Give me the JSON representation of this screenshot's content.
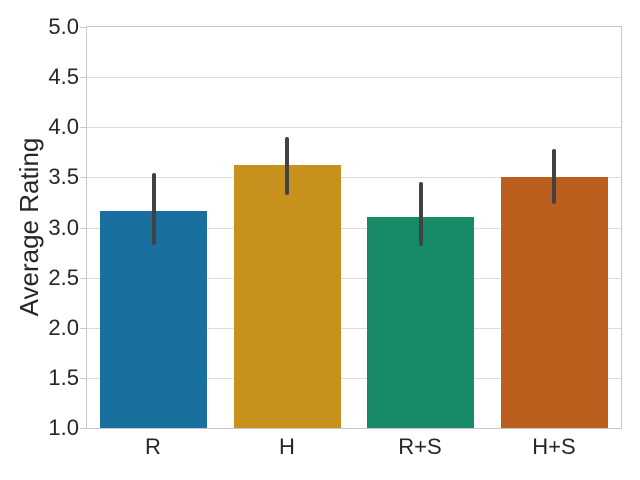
{
  "window": {
    "background": "#ffffff"
  },
  "chart_data": {
    "type": "bar",
    "title": "",
    "xlabel": "",
    "ylabel": "Average Rating",
    "categories": [
      "R",
      "H",
      "R+S",
      "H+S"
    ],
    "values": [
      3.16,
      3.62,
      3.1,
      3.5
    ],
    "errors_low": [
      2.82,
      3.32,
      2.81,
      3.23
    ],
    "errors_high": [
      3.54,
      3.9,
      3.45,
      3.78
    ],
    "ylim": [
      1.0,
      5.0
    ],
    "ytick_labels": [
      "1.0",
      "1.5",
      "2.0",
      "2.5",
      "3.0",
      "3.5",
      "4.0",
      "4.5",
      "5.0"
    ],
    "grid": true,
    "legend_position": "none",
    "bar_colors": [
      "#19709e",
      "#c8911e",
      "#178a68",
      "#bc5e1d"
    ],
    "error_bar_color": "#424242",
    "grid_color": "#dcdcdc",
    "spine_color": "#c8c8c8",
    "text_color": "#262626"
  }
}
